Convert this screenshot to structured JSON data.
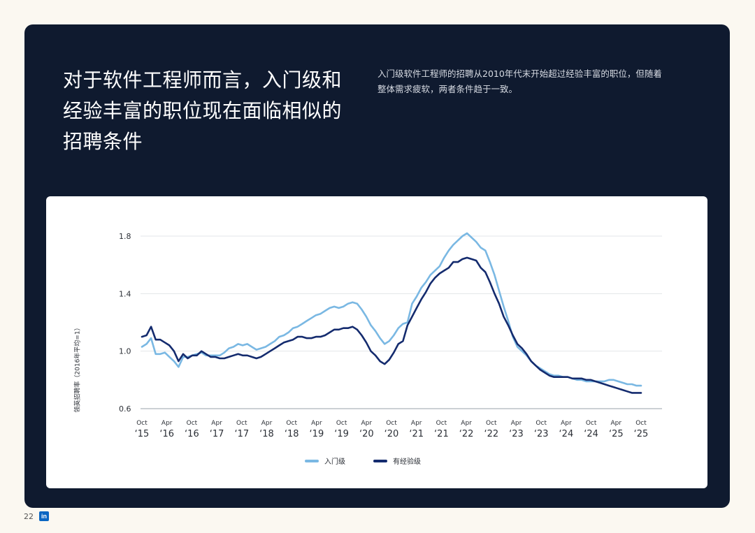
{
  "header": {
    "title": "对于软件工程师而言，入门级和经验丰富的职位现在面临相似的招聘条件",
    "subtitle": "入门级软件工程师的招聘从2010年代末开始超过经验丰富的职位，但随着整体需求疲软，两者条件趋于一致。"
  },
  "footer": {
    "page_number": "22",
    "logo": "in"
  },
  "colors": {
    "panel": "#0f1a2f",
    "entry": "#7ab8e3",
    "experienced": "#142b6e"
  },
  "chart_data": {
    "type": "line",
    "title": "",
    "xlabel": "",
    "ylabel": "领英招聘率（2016年平均=1）",
    "ylim": [
      0.6,
      1.8
    ],
    "yticks": [
      0.6,
      1.0,
      1.4,
      1.8
    ],
    "grid": true,
    "legend_position": "bottom",
    "x_ticks": [
      {
        "month": "Oct",
        "year": "‘15"
      },
      {
        "month": "Apr",
        "year": "‘16"
      },
      {
        "month": "Oct",
        "year": "‘16"
      },
      {
        "month": "Apr",
        "year": "‘17"
      },
      {
        "month": "Oct",
        "year": "‘17"
      },
      {
        "month": "Apr",
        "year": "‘18"
      },
      {
        "month": "Oct",
        "year": "‘18"
      },
      {
        "month": "Apr",
        "year": "‘19"
      },
      {
        "month": "Oct",
        "year": "‘19"
      },
      {
        "month": "Apr",
        "year": "‘20"
      },
      {
        "month": "Oct",
        "year": "‘20"
      },
      {
        "month": "Apr",
        "year": "‘21"
      },
      {
        "month": "Oct",
        "year": "‘21"
      },
      {
        "month": "Apr",
        "year": "‘22"
      },
      {
        "month": "Oct",
        "year": "‘22"
      },
      {
        "month": "Apr",
        "year": "‘23"
      },
      {
        "month": "Oct",
        "year": "‘23"
      },
      {
        "month": "Apr",
        "year": "‘24"
      },
      {
        "month": "Oct",
        "year": "‘24"
      },
      {
        "month": "Apr",
        "year": "‘25"
      },
      {
        "month": "Oct",
        "year": "‘25"
      }
    ],
    "series": [
      {
        "name": "入门级",
        "color": "#7ab8e3",
        "values": [
          1.03,
          1.05,
          1.09,
          0.98,
          0.98,
          0.99,
          0.96,
          0.93,
          0.89,
          0.96,
          0.96,
          0.97,
          0.98,
          0.99,
          0.97,
          0.97,
          0.97,
          0.97,
          0.99,
          1.02,
          1.03,
          1.05,
          1.04,
          1.05,
          1.03,
          1.01,
          1.02,
          1.03,
          1.05,
          1.07,
          1.1,
          1.11,
          1.13,
          1.16,
          1.17,
          1.19,
          1.21,
          1.23,
          1.25,
          1.26,
          1.28,
          1.3,
          1.31,
          1.3,
          1.31,
          1.33,
          1.34,
          1.33,
          1.29,
          1.24,
          1.18,
          1.14,
          1.09,
          1.05,
          1.07,
          1.11,
          1.16,
          1.19,
          1.2,
          1.33,
          1.38,
          1.44,
          1.48,
          1.53,
          1.56,
          1.59,
          1.65,
          1.7,
          1.74,
          1.77,
          1.8,
          1.82,
          1.79,
          1.76,
          1.72,
          1.7,
          1.62,
          1.53,
          1.42,
          1.31,
          1.21,
          1.1,
          1.03,
          1.0,
          0.97,
          0.93,
          0.9,
          0.88,
          0.86,
          0.84,
          0.83,
          0.83,
          0.82,
          0.82,
          0.81,
          0.8,
          0.8,
          0.79,
          0.79,
          0.79,
          0.79,
          0.79,
          0.8,
          0.8,
          0.79,
          0.78,
          0.77,
          0.77,
          0.76,
          0.76
        ]
      },
      {
        "name": "有经验级",
        "color": "#142b6e",
        "values": [
          1.1,
          1.11,
          1.17,
          1.08,
          1.08,
          1.06,
          1.04,
          1.0,
          0.93,
          0.98,
          0.95,
          0.97,
          0.97,
          1.0,
          0.98,
          0.96,
          0.96,
          0.95,
          0.95,
          0.96,
          0.97,
          0.98,
          0.97,
          0.97,
          0.96,
          0.95,
          0.96,
          0.98,
          1.0,
          1.02,
          1.04,
          1.06,
          1.07,
          1.08,
          1.1,
          1.1,
          1.09,
          1.09,
          1.1,
          1.1,
          1.11,
          1.13,
          1.15,
          1.15,
          1.16,
          1.16,
          1.17,
          1.15,
          1.11,
          1.06,
          1.0,
          0.97,
          0.93,
          0.91,
          0.94,
          0.99,
          1.05,
          1.07,
          1.18,
          1.24,
          1.3,
          1.36,
          1.41,
          1.47,
          1.51,
          1.54,
          1.56,
          1.58,
          1.62,
          1.62,
          1.64,
          1.65,
          1.64,
          1.63,
          1.58,
          1.55,
          1.48,
          1.4,
          1.33,
          1.24,
          1.18,
          1.11,
          1.05,
          1.02,
          0.98,
          0.93,
          0.9,
          0.87,
          0.85,
          0.83,
          0.82,
          0.82,
          0.82,
          0.82,
          0.81,
          0.81,
          0.81,
          0.8,
          0.8,
          0.79,
          0.78,
          0.77,
          0.76,
          0.75,
          0.74,
          0.73,
          0.72,
          0.71,
          0.71,
          0.71
        ]
      }
    ]
  }
}
